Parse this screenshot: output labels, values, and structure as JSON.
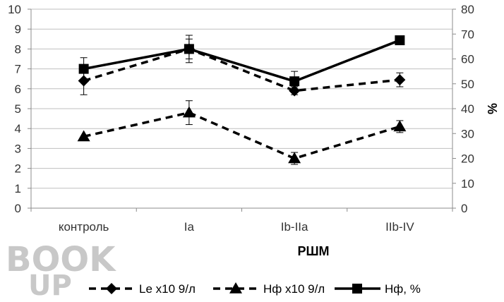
{
  "chart_data": {
    "type": "line",
    "categories": [
      "контроль",
      "Ia",
      "Ib-IIa",
      "IIb-IV"
    ],
    "xlabel": "РШМ",
    "ylabel": "",
    "y2label": "%",
    "ylim": [
      0,
      10
    ],
    "y2lim": [
      0,
      80
    ],
    "yticks": [
      "0",
      "1",
      "2",
      "3",
      "4",
      "5",
      "6",
      "7",
      "8",
      "9",
      "10"
    ],
    "y2ticks": [
      "0",
      "10",
      "20",
      "30",
      "40",
      "50",
      "60",
      "70",
      "80"
    ],
    "grid": "horizontal",
    "legend": "bottom",
    "series": [
      {
        "name": "Le x10 9/л",
        "axis": "left",
        "marker": "diamond",
        "dash": "dashed",
        "values": [
          6.4,
          8.0,
          5.9,
          6.45
        ],
        "error": [
          0.7,
          0.5,
          0.2,
          0.35
        ]
      },
      {
        "name": "Нф x10 9/л",
        "axis": "left",
        "marker": "triangle",
        "dash": "dashed",
        "values": [
          3.6,
          4.8,
          2.5,
          4.1
        ],
        "error": [
          0.0,
          0.6,
          0.3,
          0.3
        ]
      },
      {
        "name": "Нф, %",
        "axis": "right",
        "marker": "square",
        "dash": "solid",
        "values": [
          56,
          64,
          51,
          67.5
        ],
        "error": [
          4.5,
          5.5,
          4.0,
          0.0
        ]
      }
    ],
    "colors": {
      "line": "#000000",
      "grid": "#bfbfbf",
      "axis": "#8c8c8c"
    }
  },
  "watermark": {
    "text_top": "BOOK",
    "text_bottom": "UP",
    "color": "#c8c8c8"
  }
}
